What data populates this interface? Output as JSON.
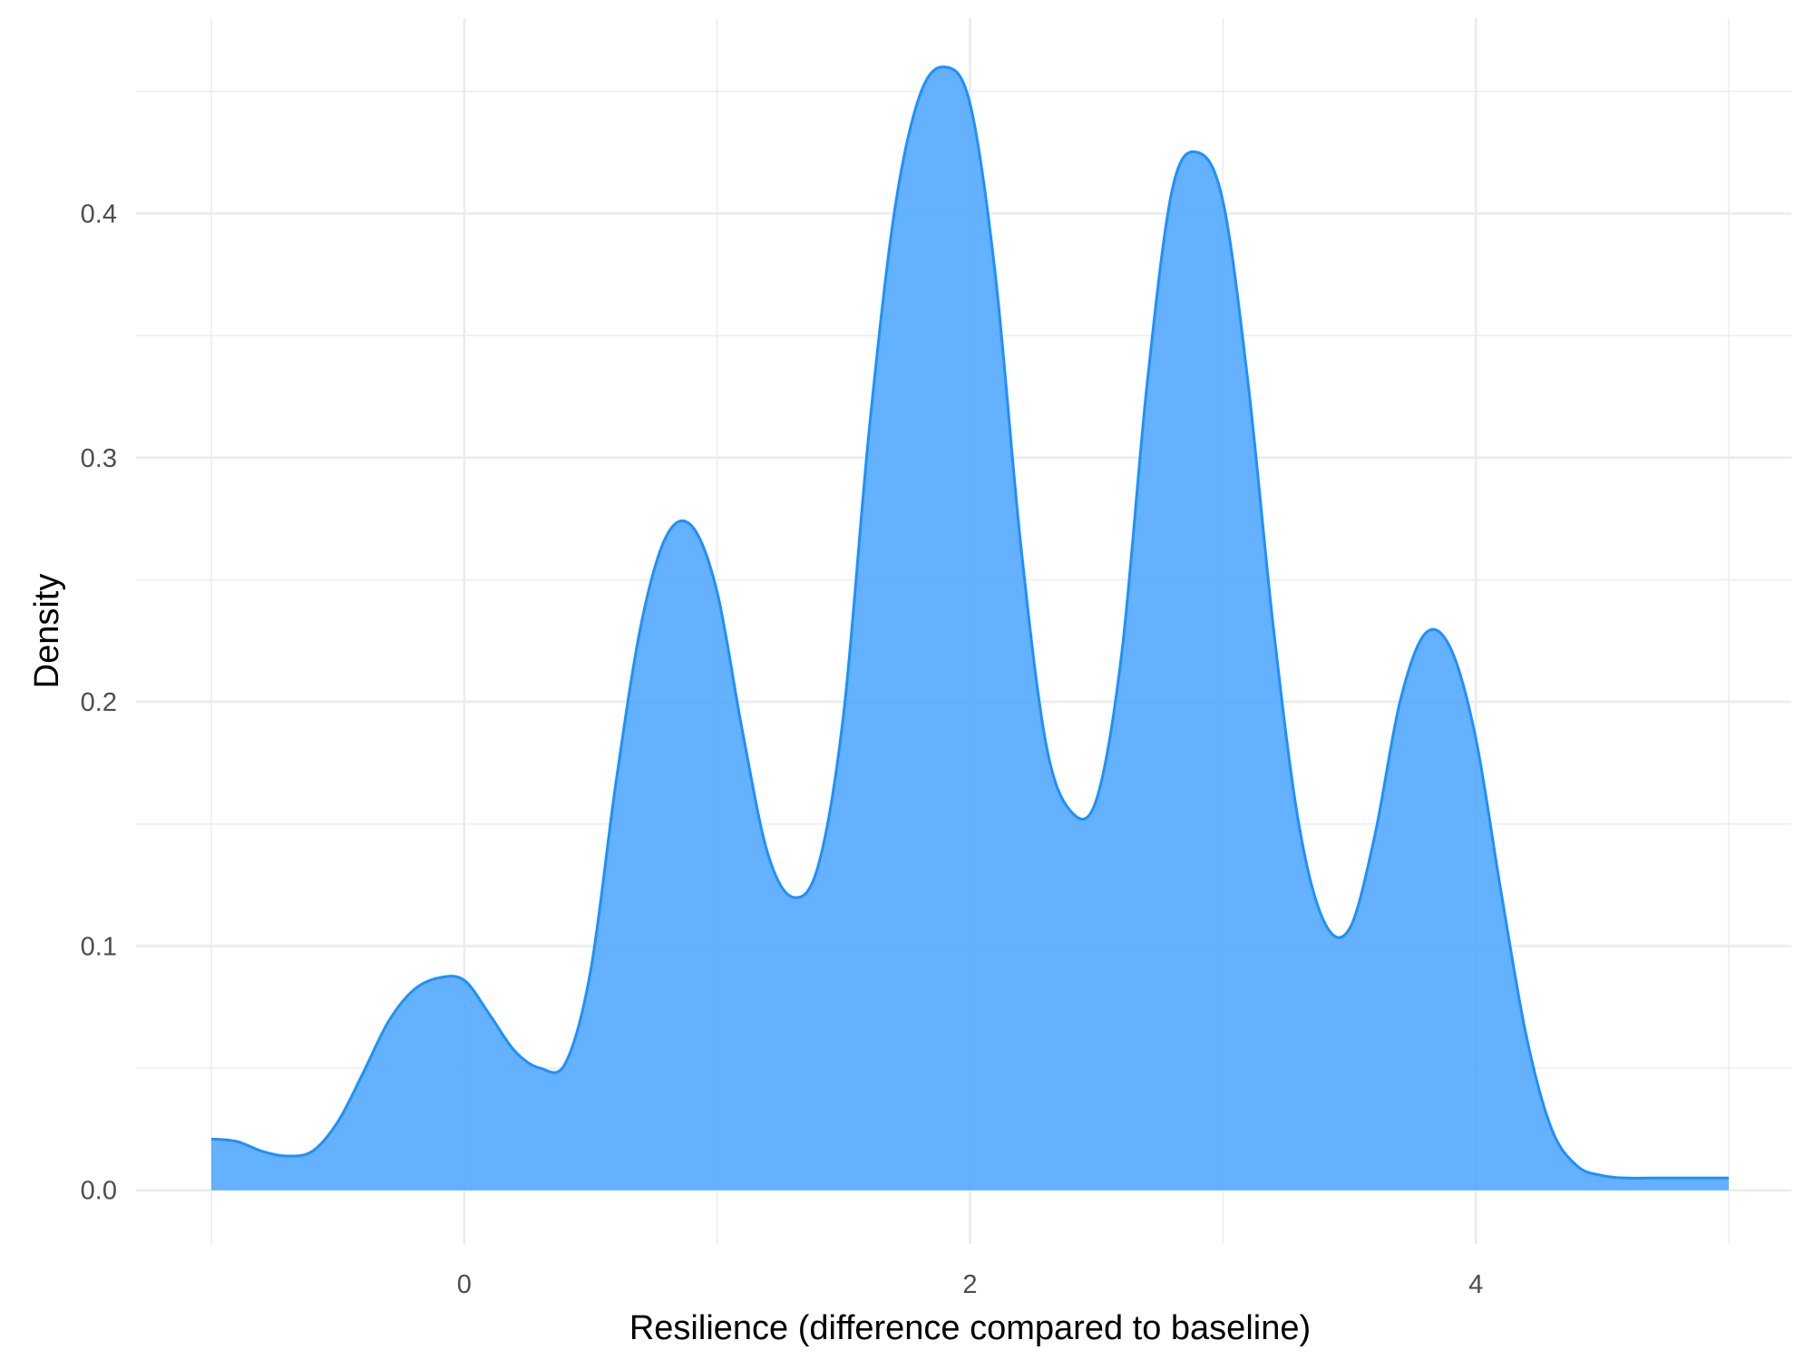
{
  "chart_data": {
    "type": "area",
    "title": "",
    "xlabel": "Resilience (difference compared to baseline)",
    "ylabel": "Density",
    "xlim": [
      -1.0,
      5.0
    ],
    "ylim": [
      -0.022,
      0.48
    ],
    "grid": true,
    "legend": "none",
    "x_ticks": [
      0,
      2,
      4
    ],
    "x_tick_labels": [
      "0",
      "2",
      "4"
    ],
    "y_ticks": [
      0.0,
      0.1,
      0.2,
      0.3,
      0.4
    ],
    "y_tick_labels": [
      "0.0",
      "0.1",
      "0.2",
      "0.3",
      "0.4"
    ],
    "colors": {
      "fill": "#4DA6FF",
      "line": "#1E90FF",
      "grid": "#EBEBEB"
    },
    "series": [
      {
        "x": [
          -1.0,
          -0.9,
          -0.8,
          -0.7,
          -0.6,
          -0.5,
          -0.4,
          -0.3,
          -0.2,
          -0.1,
          0.0,
          0.1,
          0.2,
          0.3,
          0.4,
          0.5,
          0.6,
          0.7,
          0.8,
          0.9,
          1.0,
          1.1,
          1.2,
          1.3,
          1.4,
          1.5,
          1.6,
          1.7,
          1.8,
          1.9,
          2.0,
          2.1,
          2.2,
          2.3,
          2.4,
          2.5,
          2.6,
          2.7,
          2.8,
          2.9,
          3.0,
          3.1,
          3.2,
          3.3,
          3.4,
          3.5,
          3.6,
          3.7,
          3.8,
          3.9,
          4.0,
          4.1,
          4.2,
          4.3,
          4.4,
          4.5,
          4.6,
          4.7,
          4.8,
          4.9,
          5.0
        ],
        "y": [
          0.021,
          0.02,
          0.016,
          0.014,
          0.016,
          0.028,
          0.048,
          0.069,
          0.082,
          0.087,
          0.086,
          0.072,
          0.057,
          0.05,
          0.052,
          0.09,
          0.167,
          0.232,
          0.268,
          0.272,
          0.245,
          0.188,
          0.138,
          0.12,
          0.133,
          0.195,
          0.31,
          0.4,
          0.448,
          0.46,
          0.445,
          0.375,
          0.265,
          0.183,
          0.155,
          0.16,
          0.22,
          0.33,
          0.41,
          0.425,
          0.405,
          0.33,
          0.23,
          0.15,
          0.11,
          0.107,
          0.145,
          0.2,
          0.228,
          0.222,
          0.185,
          0.122,
          0.063,
          0.025,
          0.01,
          0.006,
          0.005,
          0.005,
          0.005,
          0.005,
          0.005
        ]
      }
    ]
  }
}
